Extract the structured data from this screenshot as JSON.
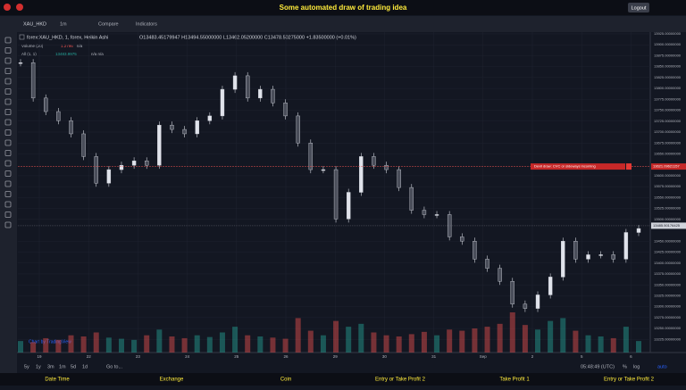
{
  "header": {
    "title": "Some automated draw of trading idea",
    "logout": "Logout"
  },
  "toolbar": {
    "symbol": "XAU_HKD",
    "interval": "1m",
    "compare": "Compare",
    "indicators": "Indicators"
  },
  "legend": {
    "main": "forex:XAU_HKD, 1, forex, Heikin Ashi",
    "ohlc": "O13483.45179947 H13494.55000000 L13462.05200000 C13478.50275000 +1.83500000 (+0.01%)",
    "volume": "Volume (20)",
    "volume_value": "1.2796",
    "volume_na": "n/a",
    "all": "All (1, 1)",
    "all_value": "13483.9975",
    "all_na": "n/a n/a"
  },
  "chart_data": {
    "type": "candlestick",
    "closes": [
      13859,
      13778,
      13747,
      13726,
      13696,
      13644,
      13583,
      13614,
      13624,
      13634,
      13624,
      13716,
      13706,
      13696,
      13726,
      13737,
      13798,
      13829,
      13778,
      13798,
      13767,
      13737,
      13675,
      13614,
      13614,
      13501,
      13562,
      13644,
      13624,
      13614,
      13573,
      13521,
      13511,
      13511,
      13460,
      13450,
      13409,
      13388,
      13358,
      13306,
      13296,
      13327,
      13368,
      13450,
      13409,
      13419,
      13419,
      13409,
      13470,
      13479
    ],
    "volumes": [
      20,
      18,
      25,
      22,
      30,
      28,
      35,
      26,
      24,
      22,
      30,
      40,
      28,
      25,
      30,
      27,
      35,
      45,
      30,
      28,
      26,
      24,
      60,
      38,
      30,
      55,
      45,
      50,
      35,
      30,
      28,
      32,
      36,
      30,
      40,
      38,
      42,
      45,
      50,
      70,
      48,
      40,
      55,
      60,
      38,
      30,
      28,
      25,
      45,
      20
    ],
    "ylim": [
      13195,
      13929
    ],
    "yticks": [
      {
        "value": 13925,
        "label": "13925.00000000"
      },
      {
        "value": 13900,
        "label": "13900.00000000"
      },
      {
        "value": 13875,
        "label": "13875.00000000"
      },
      {
        "value": 13850,
        "label": "13850.00000000"
      },
      {
        "value": 13825,
        "label": "13825.00000000"
      },
      {
        "value": 13800,
        "label": "13800.00000000"
      },
      {
        "value": 13775,
        "label": "13775.00000000"
      },
      {
        "value": 13750,
        "label": "13750.00000000"
      },
      {
        "value": 13725,
        "label": "13725.00000000"
      },
      {
        "value": 13700,
        "label": "13700.00000000"
      },
      {
        "value": 13675,
        "label": "13675.00000000"
      },
      {
        "value": 13650,
        "label": "13650.00000000"
      },
      {
        "value": 13600,
        "label": "13600.00000000"
      },
      {
        "value": 13575,
        "label": "13575.00000000"
      },
      {
        "value": 13550,
        "label": "13550.00000000"
      },
      {
        "value": 13525,
        "label": "13525.00000000"
      },
      {
        "value": 13500,
        "label": "13500.00000000"
      },
      {
        "value": 13450,
        "label": "13450.00000000"
      },
      {
        "value": 13425,
        "label": "13425.00000000"
      },
      {
        "value": 13400,
        "label": "13400.00000000"
      },
      {
        "value": 13375,
        "label": "13375.00000000"
      },
      {
        "value": 13350,
        "label": "13350.00000000"
      },
      {
        "value": 13325,
        "label": "13325.00000000"
      },
      {
        "value": 13300,
        "label": "13300.00000000"
      },
      {
        "value": 13275,
        "label": "13275.00000000"
      },
      {
        "value": 13250,
        "label": "13250.00000000"
      },
      {
        "value": 13225,
        "label": "13225.00000000"
      }
    ],
    "x_labels": [
      "19",
      "22",
      "23",
      "24",
      "25",
      "26",
      "29",
      "30",
      "31",
      "Sep",
      "2",
      "5",
      "6"
    ],
    "annotation": {
      "text": "Devil draw: CVC or sideways incoming",
      "value": 13621.09621157,
      "label": "13621.09621157"
    },
    "last_price": {
      "value": 13485.50176425,
      "label": "13485.50176425"
    },
    "watermark": "Chart by TradingView"
  },
  "bottom": {
    "ranges": [
      "5y",
      "1y",
      "3m",
      "1m",
      "5d",
      "1d"
    ],
    "goto": "Go to...",
    "time": "05:48:49 (UTC)",
    "percent": "%",
    "log": "log",
    "auto": "auto"
  },
  "footer": [
    "Date Time",
    "Exchange",
    "Coin",
    "Entry or Take Profit 2",
    "Take Profit 1",
    "Entry or Take Profit 2"
  ]
}
